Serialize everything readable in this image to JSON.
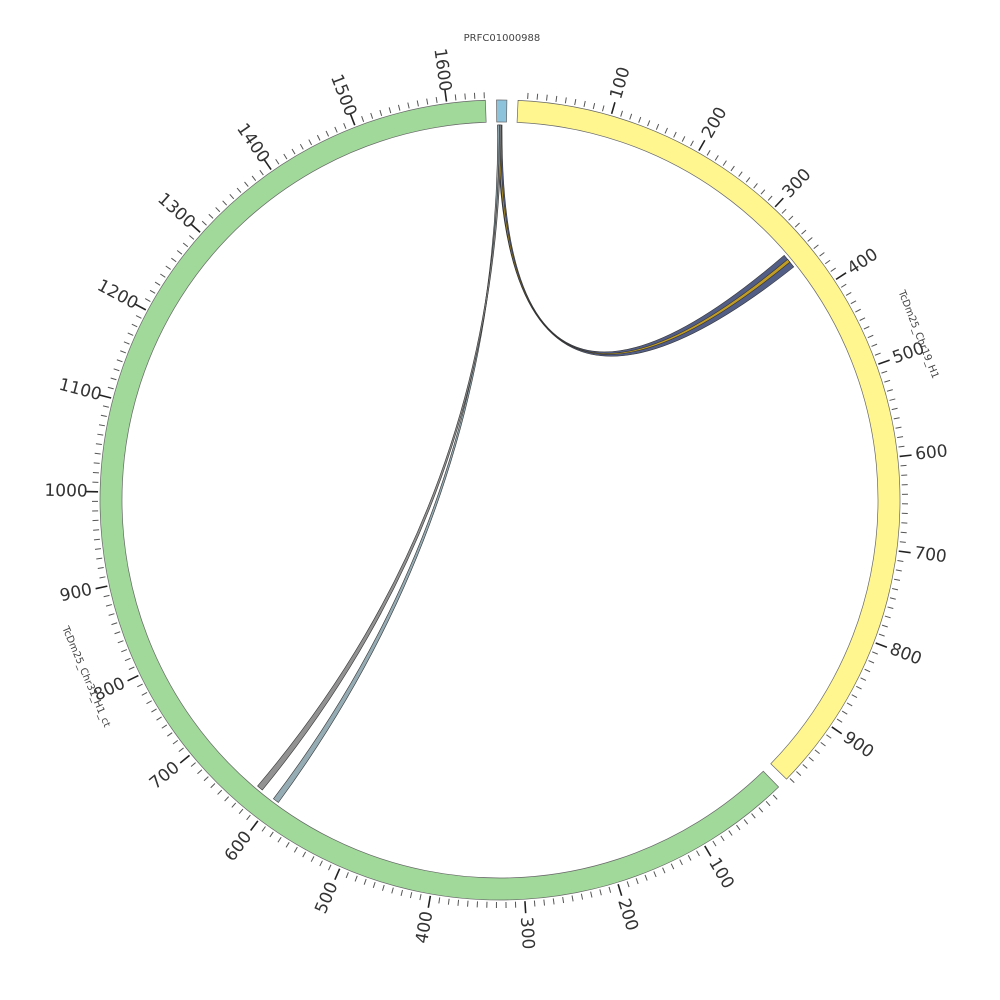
{
  "chart_data": {
    "type": "chord",
    "segments": [
      {
        "name": "PRFC01000988",
        "color": "#8ec3dc",
        "length": 11,
        "ticks": []
      },
      {
        "name": "TcDm25_Chr19_H1",
        "color": "#fff68f",
        "length": 973,
        "ticks": [
          100,
          200,
          300,
          400,
          500,
          600,
          700,
          800,
          900
        ]
      },
      {
        "name": "TcDm25_Chr31_H1_ct",
        "color": "#a1d99b",
        "length": 1641,
        "ticks": [
          100,
          200,
          300,
          400,
          500,
          600,
          700,
          800,
          900,
          1000,
          1100,
          1200,
          1300,
          1400,
          1500,
          1600
        ]
      }
    ],
    "links": [
      {
        "source_segment": 0,
        "source_start": 1,
        "source_end": 6,
        "target_segment": 1,
        "target_start": 345,
        "target_end": 362,
        "color": "#4a5580"
      },
      {
        "source_segment": 0,
        "source_start": 2,
        "source_end": 4,
        "target_segment": 1,
        "target_start": 351,
        "target_end": 355,
        "color": "#c8a020"
      },
      {
        "source_segment": 0,
        "source_start": 1,
        "source_end": 3,
        "target_segment": 2,
        "target_start": 594,
        "target_end": 601,
        "color": "#90a8b0"
      },
      {
        "source_segment": 0,
        "source_start": 3,
        "source_end": 5,
        "target_segment": 2,
        "target_start": 617,
        "target_end": 624,
        "color": "#8c8c8c"
      }
    ]
  }
}
